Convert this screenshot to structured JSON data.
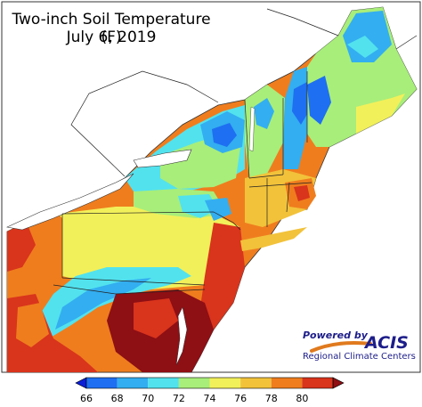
{
  "title": {
    "line1": "Two-inch Soil Temperature (F)",
    "line2": "July 6, 2019"
  },
  "logo": {
    "powered_by": "Powered by",
    "name": "ACIS",
    "subtitle": "Regional Climate Centers"
  },
  "legend": {
    "ticks": [
      "66",
      "68",
      "70",
      "72",
      "74",
      "76",
      "78",
      "80"
    ],
    "colors": [
      "#0b1fd6",
      "#1e6ff2",
      "#33aef0",
      "#52e2ee",
      "#a8ee7a",
      "#f2f05a",
      "#f2c23a",
      "#ef7d1e",
      "#d9341c",
      "#8e0f14"
    ],
    "extend": "both"
  },
  "map": {
    "region": "Northeastern United States",
    "ocean_color": "#ffffff",
    "zones": [
      {
        "name": "lake-erie-shore",
        "color": "#ef7d1e"
      },
      {
        "name": "western-ny",
        "color": "#52e2ee"
      },
      {
        "name": "adirondacks",
        "color": "#1e6ff2"
      },
      {
        "name": "vermont",
        "color": "#a8ee7a"
      },
      {
        "name": "northern-maine",
        "color": "#33aef0"
      },
      {
        "name": "coastal-maine",
        "color": "#a8ee7a"
      },
      {
        "name": "southern-new-england",
        "color": "#f2c23a"
      },
      {
        "name": "massachusetts-east",
        "color": "#ef7d1e"
      },
      {
        "name": "pennsylvania",
        "color": "#f2f05a"
      },
      {
        "name": "western-pa",
        "color": "#ef7d1e"
      },
      {
        "name": "appalachian-ridge",
        "color": "#33aef0"
      },
      {
        "name": "new-jersey",
        "color": "#d9341c"
      },
      {
        "name": "maryland-delaware",
        "color": "#8e0f14"
      },
      {
        "name": "west-virginia",
        "color": "#d9341c"
      }
    ]
  }
}
